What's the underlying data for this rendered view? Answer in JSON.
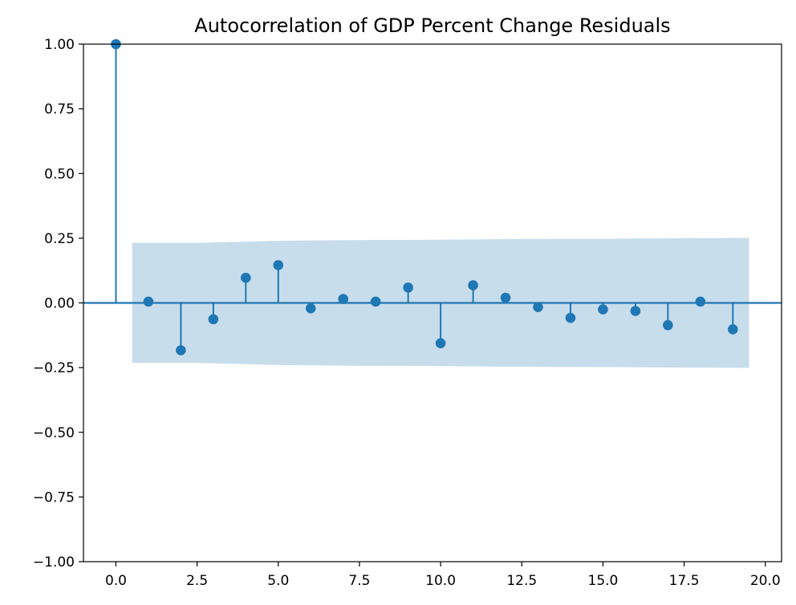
{
  "chart_data": {
    "type": "stem",
    "title": "Autocorrelation of GDP Percent Change Residuals",
    "xlabel": "",
    "ylabel": "",
    "xlim": [
      -1,
      20.5
    ],
    "ylim": [
      -1.0,
      1.0
    ],
    "xticks": [
      "0.0",
      "2.5",
      "5.0",
      "7.5",
      "10.0",
      "12.5",
      "15.0",
      "17.5",
      "20.0"
    ],
    "yticks": [
      "-1.00",
      "-0.75",
      "-0.50",
      "-0.25",
      "0.00",
      "0.25",
      "0.50",
      "0.75",
      "1.00"
    ],
    "lags": [
      0,
      1,
      2,
      3,
      4,
      5,
      6,
      7,
      8,
      9,
      10,
      11,
      12,
      13,
      14,
      15,
      16,
      17,
      18,
      19
    ],
    "values": [
      1.0,
      0.005,
      -0.183,
      -0.063,
      0.097,
      0.146,
      -0.021,
      0.015,
      0.005,
      0.059,
      -0.156,
      0.068,
      0.02,
      -0.016,
      -0.058,
      -0.025,
      -0.031,
      -0.086,
      0.005,
      -0.102
    ],
    "confidence_band": {
      "x": [
        0.5,
        2.5,
        5.0,
        7.5,
        10.0,
        12.5,
        15.0,
        17.5,
        19.5
      ],
      "upper": [
        0.232,
        0.232,
        0.24,
        0.243,
        0.244,
        0.247,
        0.248,
        0.25,
        0.251
      ],
      "lower": [
        -0.232,
        -0.232,
        -0.24,
        -0.243,
        -0.244,
        -0.247,
        -0.248,
        -0.25,
        -0.251
      ]
    },
    "grid": false,
    "colors": {
      "stem": "#1f77b4",
      "band": "#1f77b4",
      "zero_line": "#1f77b4"
    }
  }
}
